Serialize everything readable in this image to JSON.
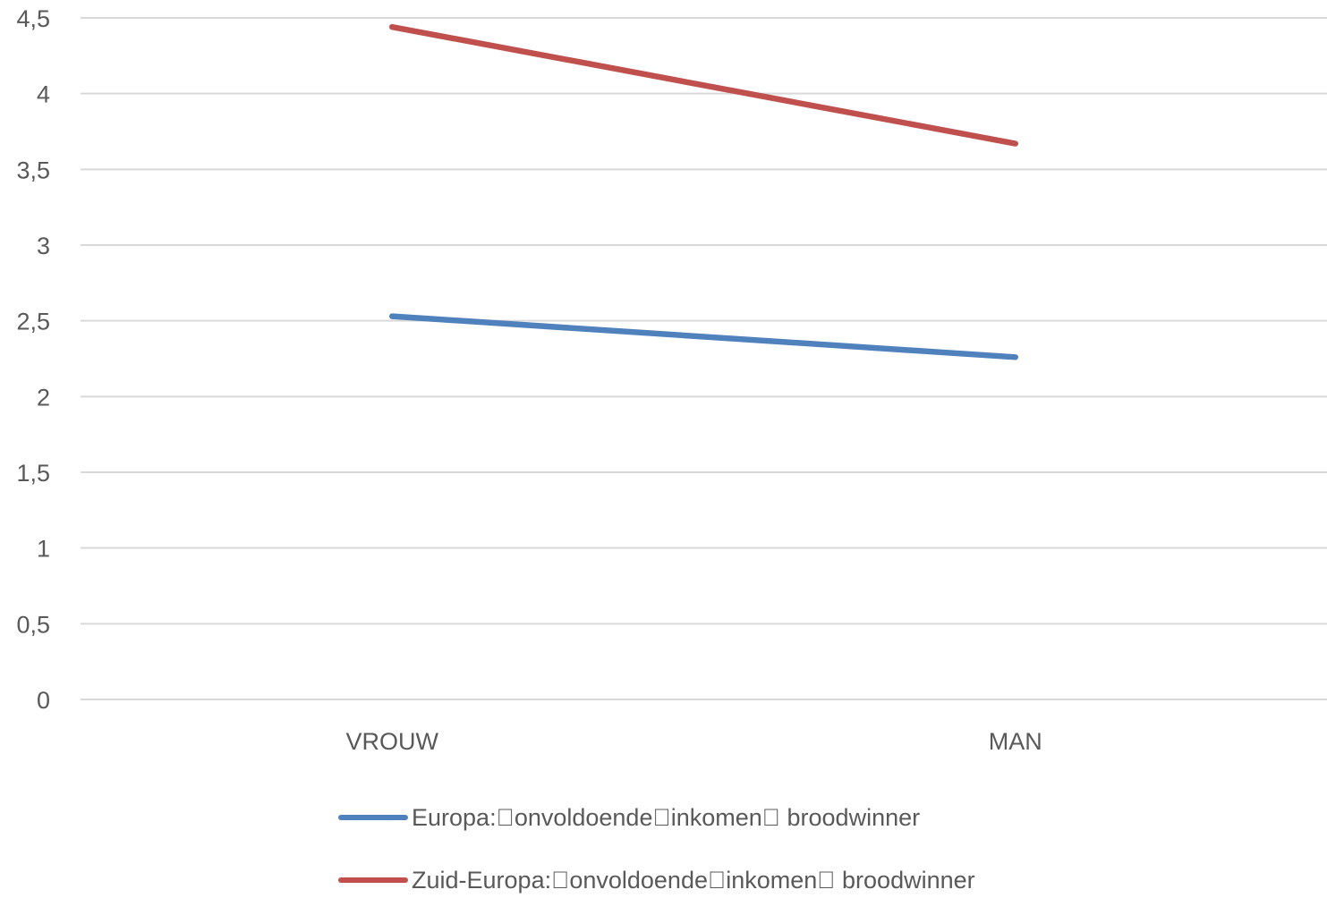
{
  "chart_data": {
    "type": "line",
    "title": "",
    "xlabel": "",
    "ylabel": "",
    "categories": [
      "VROUW",
      "MAN"
    ],
    "ylim": [
      0,
      4.5
    ],
    "y_ticks": [
      "0",
      "0,5",
      "1",
      "1,5",
      "2",
      "2,5",
      "3",
      "3,5",
      "4",
      "4,5"
    ],
    "y_tick_values": [
      0,
      0.5,
      1,
      1.5,
      2,
      2.5,
      3,
      3.5,
      4,
      4.5
    ],
    "grid": true,
    "legend_position": "bottom",
    "series": [
      {
        "name": "Europa:\u0000onvoldoende\u0000inkomen\u0000 broodwinner",
        "values": [
          2.53,
          2.26
        ],
        "color": "#4F81BD"
      },
      {
        "name": "Zuid-Europa:\u0000onvoldoende\u0000inkomen\u0000 broodwinner",
        "values": [
          4.44,
          3.67
        ],
        "color": "#C0504D"
      }
    ]
  }
}
